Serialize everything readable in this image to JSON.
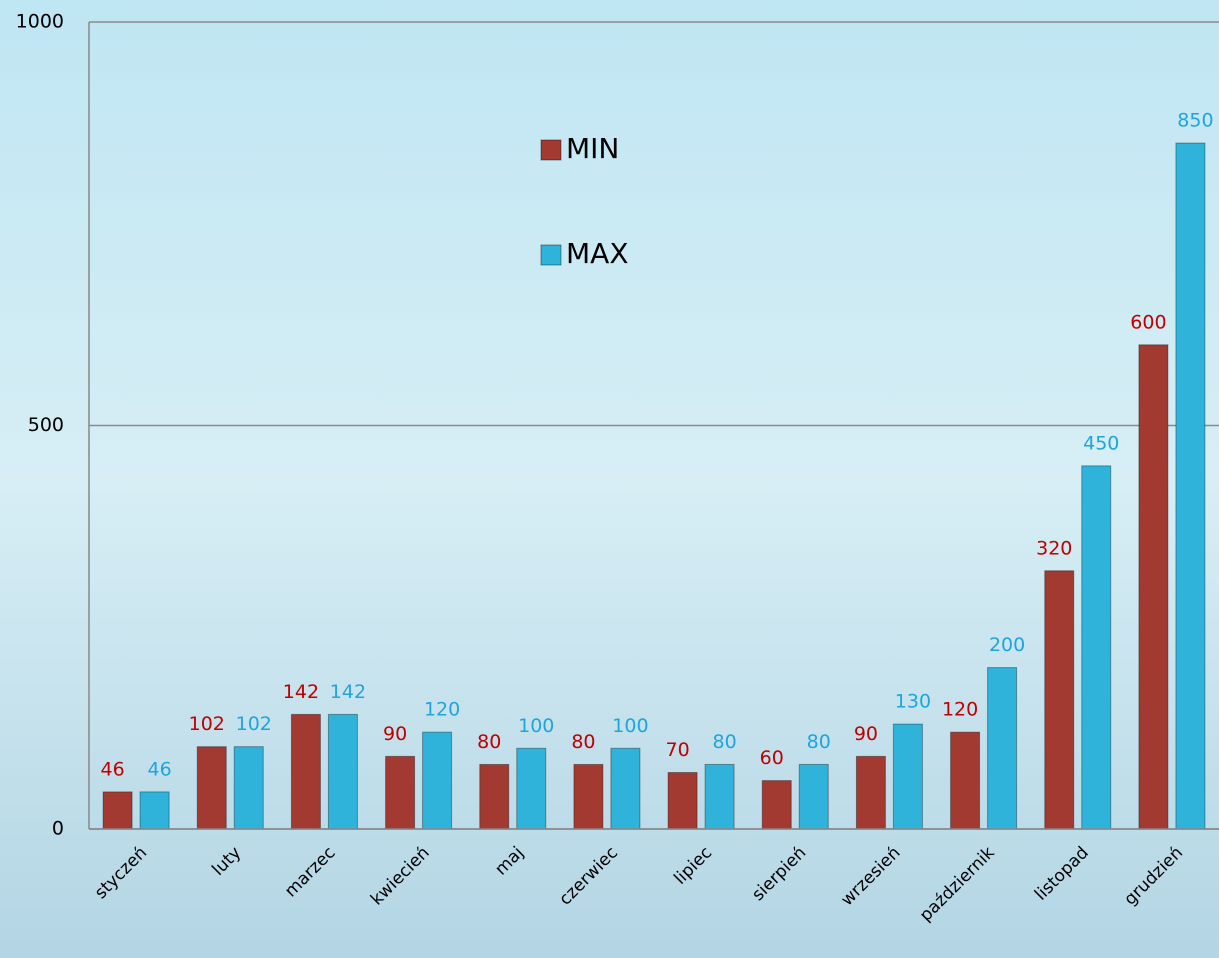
{
  "chart_data": {
    "type": "bar",
    "categories": [
      "styczeń",
      "luty",
      "marzec",
      "kwiecień",
      "maj",
      "czerwiec",
      "lipiec",
      "sierpień",
      "wrzesień",
      "październik",
      "listopad",
      "grudzień"
    ],
    "series": [
      {
        "name": "MIN",
        "color": "#a33a32",
        "label_color": "#c00000",
        "values": [
          46,
          102,
          142,
          90,
          80,
          80,
          70,
          60,
          90,
          120,
          320,
          600
        ]
      },
      {
        "name": "MAX",
        "color": "#2fb3da",
        "label_color": "#1ea6dc",
        "values": [
          46,
          102,
          142,
          120,
          100,
          100,
          80,
          80,
          130,
          200,
          450,
          850
        ]
      }
    ],
    "ylim": [
      0,
      1000
    ],
    "yticks": [
      0,
      500,
      1000
    ],
    "grid": true
  }
}
